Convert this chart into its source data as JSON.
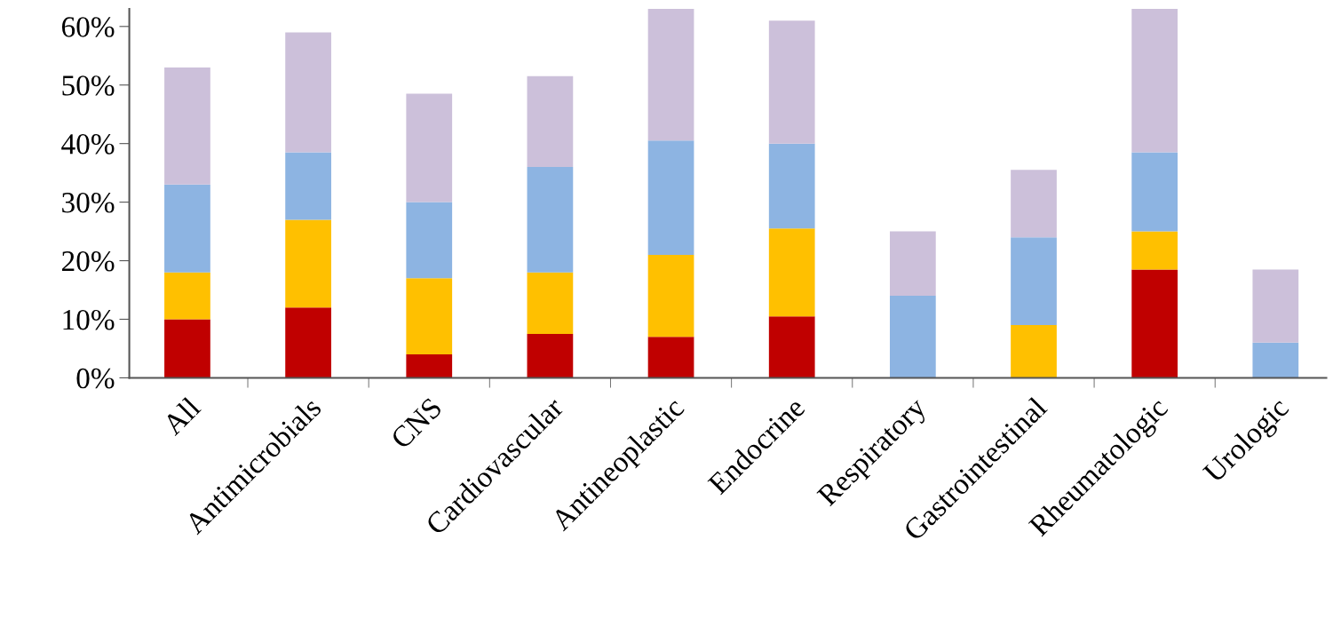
{
  "chart_data": {
    "type": "bar",
    "stacked": true,
    "categories": [
      "All",
      "Antimicrobials",
      "CNS",
      "Cardiovascular",
      "Antineoplastic",
      "Endocrine",
      "Respiratory",
      "Gastrointestinal",
      "Rheumatologic",
      "Urologic"
    ],
    "series": [
      {
        "color": "#c00000",
        "values": [
          10,
          12,
          4,
          7.5,
          7,
          10.5,
          0,
          0,
          18.5,
          0
        ]
      },
      {
        "color": "#ffc000",
        "values": [
          8,
          15,
          13,
          10.5,
          14,
          15,
          0,
          9,
          6.5,
          0
        ]
      },
      {
        "color": "#8db4e2",
        "values": [
          15,
          11.5,
          13,
          18,
          19.5,
          14.5,
          14,
          15,
          13.5,
          6
        ]
      },
      {
        "color": "#ccc0da",
        "values": [
          20,
          20.5,
          18.5,
          15.5,
          22.5,
          21,
          11,
          11.5,
          24.5,
          12.5
        ]
      }
    ],
    "ylim": [
      0,
      63
    ],
    "yticks": [
      {
        "value": 0,
        "label": "0%"
      },
      {
        "value": 10,
        "label": "10%"
      },
      {
        "value": 20,
        "label": "20%"
      },
      {
        "value": 30,
        "label": "30%"
      },
      {
        "value": 40,
        "label": "40%"
      },
      {
        "value": 50,
        "label": "50%"
      },
      {
        "value": 60,
        "label": "60%"
      }
    ],
    "grid": false
  }
}
